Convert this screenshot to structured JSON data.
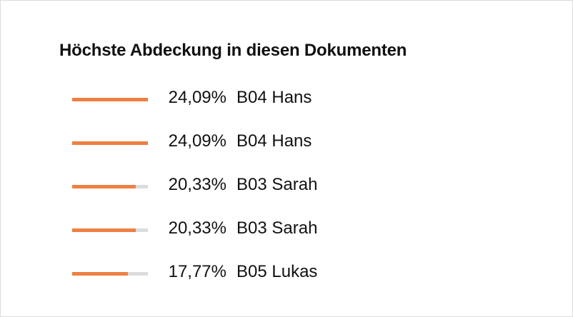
{
  "panel": {
    "title": "Höchste Abdeckung in diesen Dokumenten",
    "accent_color": "#ee8042",
    "track_color": "#dcdcdc"
  },
  "rows": [
    {
      "percent_text": "24,09%",
      "label": "B04 Hans",
      "fill_fraction": 1.0
    },
    {
      "percent_text": "24,09%",
      "label": "B04 Hans",
      "fill_fraction": 1.0
    },
    {
      "percent_text": "20,33%",
      "label": "B03 Sarah",
      "fill_fraction": 0.844
    },
    {
      "percent_text": "20,33%",
      "label": "B03 Sarah",
      "fill_fraction": 0.844
    },
    {
      "percent_text": "17,77%",
      "label": "B05 Lukas",
      "fill_fraction": 0.738
    }
  ]
}
